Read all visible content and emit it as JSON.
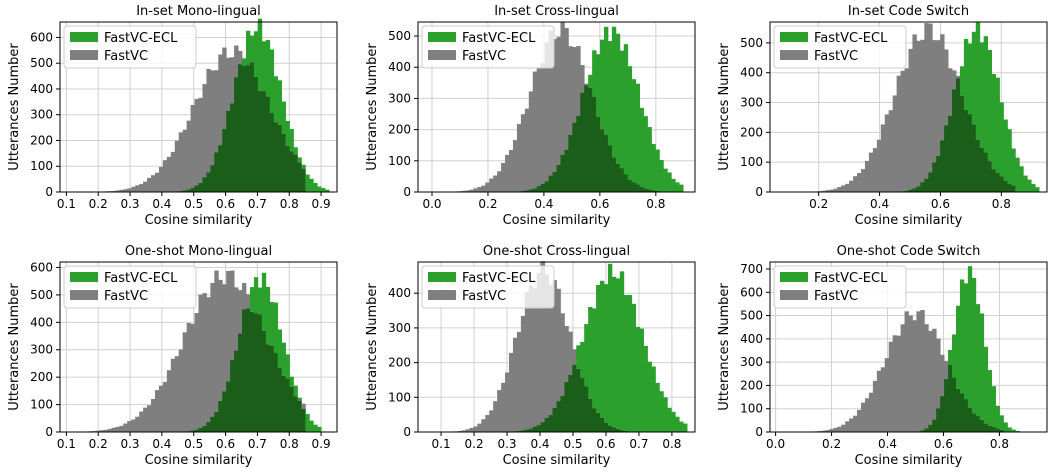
{
  "figure": {
    "background": "#ffffff"
  },
  "colors": {
    "ecl": "#2ca02c",
    "base": "#7f7f7f",
    "overlap": "#1a5e1a",
    "grid": "#d0d0d0"
  },
  "chart_data": [
    {
      "type": "histogram",
      "title": "In-set Mono-lingual",
      "xlabel": "Cosine similarity",
      "ylabel": "Utterances Number",
      "xlim": [
        0.08,
        0.95
      ],
      "ylim": [
        0,
        660
      ],
      "xticks": [
        0.1,
        0.2,
        0.3,
        0.4,
        0.5,
        0.6,
        0.7,
        0.8,
        0.9
      ],
      "xtick_labels": [
        "0.1",
        "0.2",
        "0.3",
        "0.4",
        "0.5",
        "0.6",
        "0.7",
        "0.8",
        "0.9"
      ],
      "yticks": [
        0,
        100,
        200,
        300,
        400,
        500,
        600
      ],
      "grid": true,
      "legend": "top-left",
      "series": [
        {
          "name": "FastVC-ECL",
          "color": "#2ca02c",
          "mean": 0.7,
          "sd": 0.075,
          "peak": 640,
          "lo": 0.3,
          "hi": 0.92
        },
        {
          "name": "FastVC",
          "color": "#7f7f7f",
          "mean": 0.62,
          "sd": 0.12,
          "peak": 545,
          "lo": 0.15,
          "hi": 0.85
        }
      ]
    },
    {
      "type": "histogram",
      "title": "In-set Cross-lingual",
      "xlabel": "Cosine similarity",
      "ylabel": "Utterances Number",
      "xlim": [
        -0.05,
        0.94
      ],
      "ylim": [
        0,
        545
      ],
      "xticks": [
        0.0,
        0.2,
        0.4,
        0.6,
        0.8
      ],
      "xtick_labels": [
        "0.0",
        "0.2",
        "0.4",
        "0.6",
        "0.8"
      ],
      "yticks": [
        0,
        100,
        200,
        300,
        400,
        500
      ],
      "grid": true,
      "legend": "top-left",
      "series": [
        {
          "name": "FastVC-ECL",
          "color": "#2ca02c",
          "mean": 0.64,
          "sd": 0.1,
          "peak": 515,
          "lo": 0.15,
          "hi": 0.9
        },
        {
          "name": "FastVC",
          "color": "#7f7f7f",
          "mean": 0.46,
          "sd": 0.11,
          "peak": 520,
          "lo": -0.02,
          "hi": 0.82
        }
      ]
    },
    {
      "type": "histogram",
      "title": "In-set Code Switch",
      "xlabel": "Cosine similarity",
      "ylabel": "Utterances Number",
      "xlim": [
        0.04,
        0.95
      ],
      "ylim": [
        0,
        570
      ],
      "xticks": [
        0.2,
        0.4,
        0.6,
        0.8
      ],
      "xtick_labels": [
        "0.2",
        "0.4",
        "0.6",
        "0.8"
      ],
      "yticks": [
        0,
        100,
        200,
        300,
        400,
        500
      ],
      "grid": true,
      "legend": "top-left",
      "series": [
        {
          "name": "FastVC-ECL",
          "color": "#2ca02c",
          "mean": 0.72,
          "sd": 0.075,
          "peak": 545,
          "lo": 0.35,
          "hi": 0.92
        },
        {
          "name": "FastVC",
          "color": "#7f7f7f",
          "mean": 0.56,
          "sd": 0.11,
          "peak": 545,
          "lo": 0.1,
          "hi": 0.85
        }
      ]
    },
    {
      "type": "histogram",
      "title": "One-shot Mono-lingual",
      "xlabel": "Cosine similarity",
      "ylabel": "Utterances Number",
      "xlim": [
        0.08,
        0.95
      ],
      "ylim": [
        0,
        620
      ],
      "xticks": [
        0.1,
        0.2,
        0.3,
        0.4,
        0.5,
        0.6,
        0.7,
        0.8,
        0.9
      ],
      "xtick_labels": [
        "0.1",
        "0.2",
        "0.3",
        "0.4",
        "0.5",
        "0.6",
        "0.7",
        "0.8",
        "0.9"
      ],
      "yticks": [
        0,
        100,
        200,
        300,
        400,
        500,
        600
      ],
      "grid": true,
      "legend": "top-left",
      "series": [
        {
          "name": "FastVC-ECL",
          "color": "#2ca02c",
          "mean": 0.71,
          "sd": 0.07,
          "peak": 560,
          "lo": 0.35,
          "hi": 0.9
        },
        {
          "name": "FastVC",
          "color": "#7f7f7f",
          "mean": 0.6,
          "sd": 0.13,
          "peak": 570,
          "lo": 0.15,
          "hi": 0.85
        }
      ]
    },
    {
      "type": "histogram",
      "title": "One-shot Cross-lingual",
      "xlabel": "Cosine similarity",
      "ylabel": "Utterances Number",
      "xlim": [
        0.03,
        0.87
      ],
      "ylim": [
        0,
        490
      ],
      "xticks": [
        0.1,
        0.2,
        0.3,
        0.4,
        0.5,
        0.6,
        0.7,
        0.8
      ],
      "xtick_labels": [
        "0.1",
        "0.2",
        "0.3",
        "0.4",
        "0.5",
        "0.6",
        "0.7",
        "0.8"
      ],
      "yticks": [
        0,
        100,
        200,
        300,
        400
      ],
      "grid": true,
      "legend": "top-left",
      "series": [
        {
          "name": "FastVC-ECL",
          "color": "#2ca02c",
          "mean": 0.62,
          "sd": 0.09,
          "peak": 460,
          "lo": 0.18,
          "hi": 0.85
        },
        {
          "name": "FastVC",
          "color": "#7f7f7f",
          "mean": 0.41,
          "sd": 0.08,
          "peak": 465,
          "lo": 0.08,
          "hi": 0.72
        }
      ]
    },
    {
      "type": "histogram",
      "title": "One-shot Code Switch",
      "xlabel": "Cosine similarity",
      "ylabel": "Utterances Number",
      "xlim": [
        -0.02,
        0.97
      ],
      "ylim": [
        0,
        730
      ],
      "xticks": [
        0.0,
        0.2,
        0.4,
        0.6,
        0.8
      ],
      "xtick_labels": [
        "0.0",
        "0.2",
        "0.4",
        "0.6",
        "0.8"
      ],
      "yticks": [
        0,
        100,
        200,
        300,
        400,
        500,
        600,
        700
      ],
      "grid": true,
      "legend": "top-left",
      "series": [
        {
          "name": "FastVC-ECL",
          "color": "#2ca02c",
          "mean": 0.69,
          "sd": 0.055,
          "peak": 690,
          "lo": 0.35,
          "hi": 0.88
        },
        {
          "name": "FastVC",
          "color": "#7f7f7f",
          "mean": 0.5,
          "sd": 0.11,
          "peak": 510,
          "lo": 0.08,
          "hi": 0.82
        }
      ]
    }
  ]
}
